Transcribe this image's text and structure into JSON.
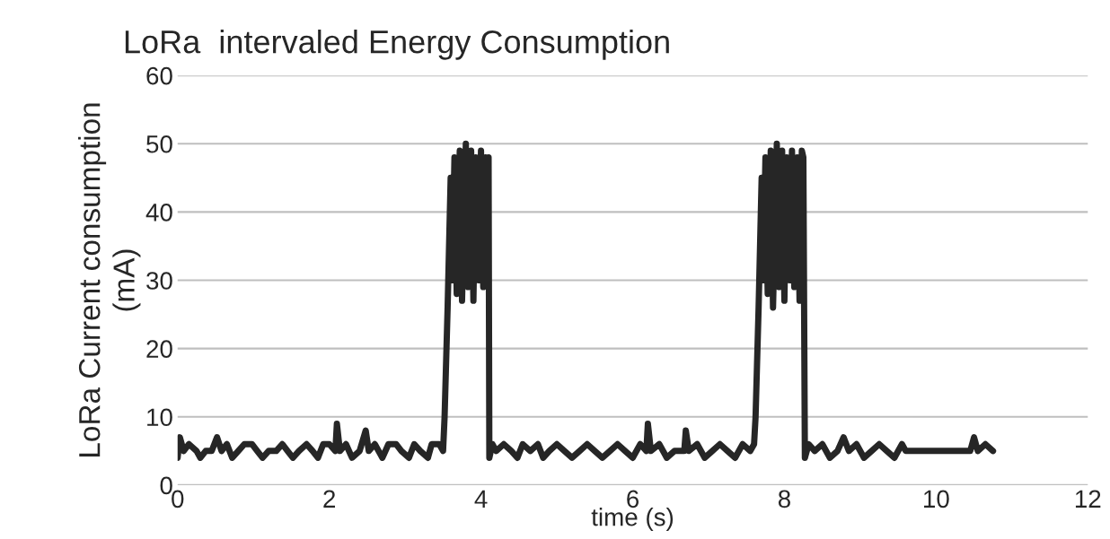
{
  "chart_data": {
    "type": "line",
    "title": "LoRa  intervaled Energy Consumption",
    "xlabel": "time (s)",
    "ylabel": "LoRa Current consumption\n(mA)",
    "x": [
      0,
      0.03,
      0.08,
      0.15,
      0.25,
      0.3,
      0.37,
      0.45,
      0.52,
      0.58,
      0.65,
      0.72,
      0.8,
      0.88,
      0.98,
      1.05,
      1.12,
      1.2,
      1.3,
      1.38,
      1.45,
      1.52,
      1.6,
      1.7,
      1.78,
      1.85,
      1.92,
      2.0,
      2.08,
      2.1,
      2.14,
      2.22,
      2.3,
      2.4,
      2.48,
      2.52,
      2.6,
      2.7,
      2.78,
      2.88,
      2.95,
      3.05,
      3.12,
      3.2,
      3.3,
      3.35,
      3.45,
      3.5,
      3.52,
      3.56,
      3.6,
      3.62,
      3.65,
      3.68,
      3.72,
      3.75,
      3.8,
      3.83,
      3.87,
      3.9,
      3.93,
      3.97,
      4.0,
      4.03,
      4.06,
      4.08,
      4.1,
      4.11,
      4.15,
      4.2,
      4.3,
      4.4,
      4.48,
      4.55,
      4.65,
      4.75,
      4.82,
      4.9,
      5.0,
      5.1,
      5.2,
      5.3,
      5.4,
      5.5,
      5.6,
      5.7,
      5.8,
      5.9,
      6.0,
      6.1,
      6.18,
      6.2,
      6.24,
      6.35,
      6.45,
      6.55,
      6.68,
      6.7,
      6.74,
      6.85,
      6.95,
      7.05,
      7.15,
      7.25,
      7.35,
      7.45,
      7.55,
      7.6,
      7.62,
      7.66,
      7.7,
      7.72,
      7.75,
      7.78,
      7.82,
      7.85,
      7.9,
      7.93,
      7.97,
      8.0,
      8.03,
      8.07,
      8.1,
      8.13,
      8.17,
      8.2,
      8.23,
      8.25,
      8.27,
      8.32,
      8.4,
      8.5,
      8.6,
      8.7,
      8.78,
      8.85,
      8.95,
      9.05,
      9.15,
      9.25,
      9.35,
      9.45,
      9.55,
      9.6,
      10.45,
      10.5,
      10.55,
      10.65,
      10.75
    ],
    "series": [
      {
        "color": "#262626",
        "values": [
          4,
          7,
          5,
          6,
          5,
          4,
          5,
          5,
          7,
          5,
          6,
          4,
          5,
          6,
          6,
          5,
          4,
          5,
          5,
          6,
          5,
          4,
          5,
          6,
          5,
          4,
          6,
          6,
          5,
          9,
          5,
          6,
          4,
          5,
          8,
          5,
          6,
          4,
          6,
          6,
          5,
          4,
          6,
          5,
          4,
          6,
          6,
          5,
          10,
          26,
          45,
          30,
          48,
          28,
          49,
          27,
          50,
          29,
          49,
          27,
          48,
          30,
          49,
          29,
          48,
          30,
          48,
          4,
          6,
          5,
          6,
          5,
          4,
          6,
          5,
          6,
          4,
          5,
          6,
          5,
          4,
          5,
          6,
          5,
          4,
          5,
          6,
          5,
          4,
          6,
          5,
          9,
          5,
          6,
          4,
          5,
          5,
          8,
          5,
          6,
          4,
          5,
          6,
          5,
          4,
          6,
          5,
          6,
          10,
          26,
          45,
          30,
          48,
          28,
          49,
          26,
          50,
          29,
          49,
          27,
          48,
          30,
          49,
          29,
          48,
          27,
          49,
          48,
          4,
          6,
          5,
          6,
          4,
          5,
          7,
          5,
          6,
          4,
          5,
          6,
          5,
          4,
          6,
          5,
          5,
          7,
          5,
          6,
          5
        ]
      }
    ],
    "xlim": [
      0,
      12
    ],
    "xticks": [
      0,
      2,
      4,
      6,
      8,
      10,
      12
    ],
    "ylim": [
      0,
      60
    ],
    "yticks": [
      0,
      10,
      20,
      30,
      40,
      50,
      60
    ],
    "grid": "y",
    "legend": false,
    "marker": "none",
    "line_style": "solid"
  }
}
